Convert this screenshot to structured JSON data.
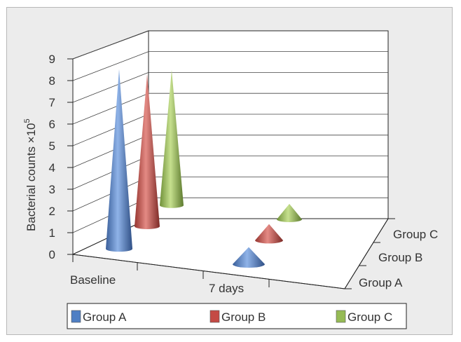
{
  "chart_data": {
    "type": "bar",
    "style": "3d-cone",
    "categories": [
      "Baseline",
      "7 days"
    ],
    "depth_labels": [
      "Group A",
      "Group B",
      "Group C"
    ],
    "ylabel_main": "Bacterial counts ×10",
    "ylabel_sup": "5",
    "ylim": [
      0,
      9
    ],
    "yticks": [
      "0",
      "1",
      "2",
      "3",
      "4",
      "5",
      "6",
      "7",
      "8",
      "9"
    ],
    "grid": true,
    "legend_position": "bottom",
    "series": [
      {
        "name": "Group A",
        "color": "#4f7fc4",
        "values": [
          8.4,
          0.8
        ]
      },
      {
        "name": "Group B",
        "color": "#c44a45",
        "values": [
          7.5,
          0.8
        ]
      },
      {
        "name": "Group C",
        "color": "#96bb55",
        "values": [
          7.0,
          0.8
        ]
      }
    ]
  }
}
